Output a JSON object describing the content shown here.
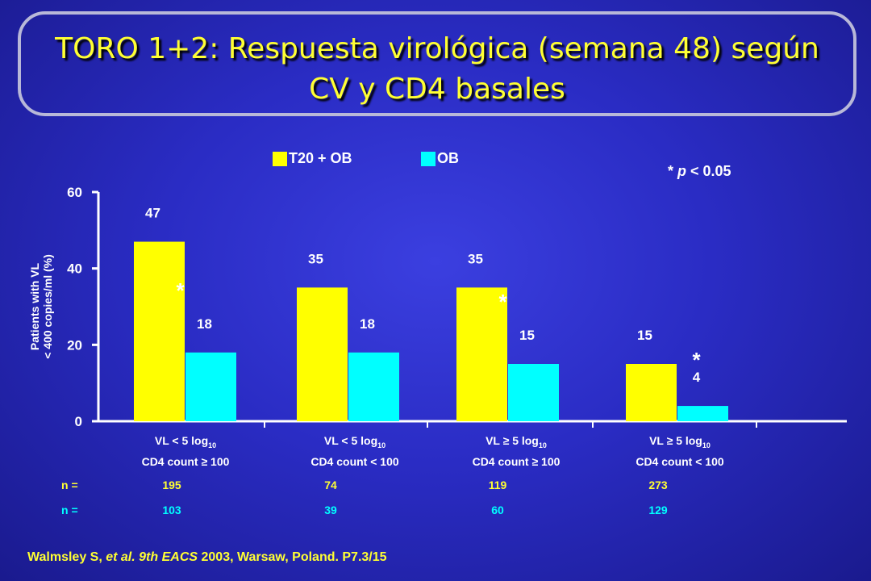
{
  "title_line1": "TORO 1+2: Respuesta virológica (semana 48) según",
  "title_line2": "CV y CD4 basales",
  "legend": [
    {
      "label": "T20 + OB",
      "color": "#ffff00"
    },
    {
      "label": "OB",
      "color": "#00ffff"
    }
  ],
  "p_note_mark": "* ",
  "p_note_p": "p",
  "p_note_rest": " < 0.05",
  "reference": {
    "author": "Walmsley S, ",
    "etal": "et al. 9th EACS",
    "rest": " 2003, Warsaw, Poland. P7.3/15"
  },
  "n_label": "n =",
  "categories": [
    {
      "line1": "VL < 5 log",
      "sub": "10",
      "line2": "CD4 count ≥ 100"
    },
    {
      "line1": "VL < 5 log",
      "sub": "10",
      "line2": "CD4 count < 100"
    },
    {
      "line1": "VL ≥ 5 log",
      "sub": "10",
      "line2": "CD4 count ≥ 100"
    },
    {
      "line1": "VL ≥ 5 log",
      "sub": "10",
      "line2": "CD4 count < 100"
    }
  ],
  "n_t20": [
    "195",
    "74",
    "119",
    "273"
  ],
  "n_ob": [
    "103",
    "39",
    "60",
    "129"
  ],
  "chart_data": {
    "type": "bar",
    "ylabel_line1": "Patients with VL",
    "ylabel_line2": "< 400 copies/ml (%)",
    "ylim": [
      0,
      60
    ],
    "yticks": [
      "0",
      "20",
      "40",
      "60"
    ],
    "series": [
      {
        "name": "T20 + OB",
        "color": "#ffff00",
        "values": [
          47,
          35,
          35,
          15
        ],
        "labels": [
          "47",
          "35",
          "35",
          "15"
        ]
      },
      {
        "name": "OB",
        "color": "#00ffff",
        "values": [
          18,
          18,
          15,
          4
        ],
        "labels": [
          "18",
          "18",
          "15",
          "4"
        ]
      }
    ],
    "significance": [
      true,
      false,
      true,
      true
    ],
    "significance_mark": "*"
  }
}
